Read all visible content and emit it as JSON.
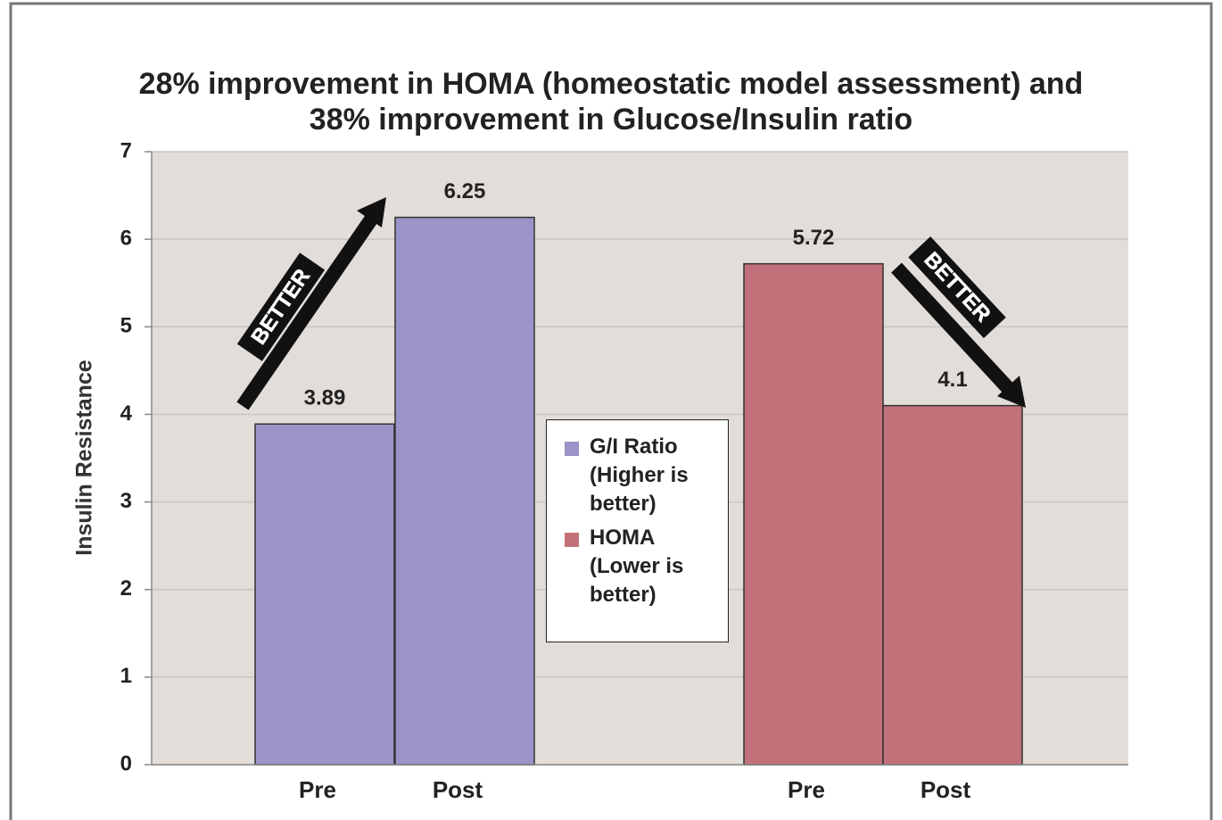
{
  "chart_data": {
    "type": "bar",
    "title": [
      "28% improvement in HOMA (homeostatic model assessment) and",
      "38% improvement in Glucose/Insulin ratio"
    ],
    "y_label": "Insulin Resistance",
    "categories": [
      "Pre",
      "Post",
      "Pre",
      "Post"
    ],
    "series": [
      {
        "name": "G/I Ratio (Higher is better)",
        "color": "#9b94c9",
        "values": [
          3.89,
          6.25,
          null,
          null
        ]
      },
      {
        "name": "HOMA (Lower is better)",
        "color": "#c2717a",
        "values": [
          null,
          null,
          5.72,
          4.1
        ]
      }
    ],
    "ylim": [
      0,
      7
    ],
    "yticks": [
      0,
      1,
      2,
      3,
      4,
      5,
      6,
      7
    ],
    "grid": true,
    "annotations": [
      "BETTER",
      "BETTER"
    ]
  }
}
